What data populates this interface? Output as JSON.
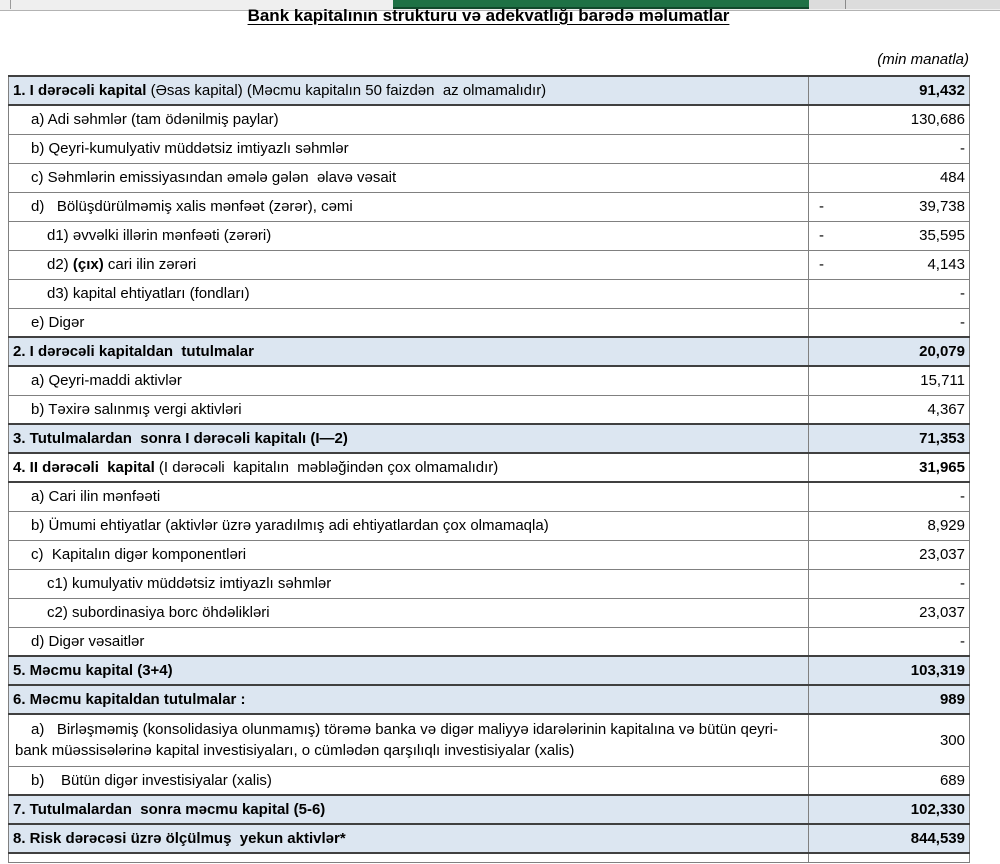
{
  "chrome": {
    "topbar_green": "#1e7145",
    "note": "cropped spreadsheet chrome strip"
  },
  "title": "Bank kapitalının strukturu və adekvatlığı barədə məlumatlar",
  "unit_note": "(min manatla)",
  "colors": {
    "section_bg": "#dce6f1",
    "grid_border": "#808080",
    "section_border": "#404040"
  },
  "table": {
    "rows": [
      {
        "kind": "section",
        "shaded": true,
        "indent": 0,
        "value": "91,432",
        "value_bold": true,
        "negative": false,
        "segments": [
          {
            "text": "1. I dərəcəli kapital ",
            "bold": true
          },
          {
            "text": "(Əsas kapital) (Məcmu kapitalın 50 faizdən  az olmamalıdır)",
            "bold": false
          }
        ]
      },
      {
        "kind": "item",
        "indent": 1,
        "value": "130,686",
        "segments": [
          {
            "text": "a) Adi səhmlər (tam ödənilmiş paylar)",
            "bold": false
          }
        ]
      },
      {
        "kind": "item",
        "indent": 1,
        "value": "-",
        "segments": [
          {
            "text": "b) Qeyri-kumulyativ müddətsiz imtiyazlı səhmlər",
            "bold": false
          }
        ]
      },
      {
        "kind": "item",
        "indent": 1,
        "value": "484",
        "segments": [
          {
            "text": "c) Səhmlərin emissiyasından əmələ gələn  əlavə vəsait",
            "bold": false
          }
        ]
      },
      {
        "kind": "item",
        "indent": 1,
        "value": "39,738",
        "negative": true,
        "segments": [
          {
            "text": "d)   Bölüşdürülməmiş xalis mənfəət (zərər), cəmi",
            "bold": false
          }
        ]
      },
      {
        "kind": "item",
        "indent": 2,
        "value": "35,595",
        "negative": true,
        "segments": [
          {
            "text": "d1) əvvəlki illərin mənfəəti (zərəri)",
            "bold": false
          }
        ]
      },
      {
        "kind": "item",
        "indent": 2,
        "value": "4,143",
        "negative": true,
        "segments": [
          {
            "text": "d2) ",
            "bold": false
          },
          {
            "text": "(çıx)",
            "bold": true
          },
          {
            "text": " cari ilin zərəri",
            "bold": false
          }
        ]
      },
      {
        "kind": "item",
        "indent": 2,
        "value": "-",
        "segments": [
          {
            "text": "d3) kapital ehtiyatları (fondları)",
            "bold": false
          }
        ]
      },
      {
        "kind": "item",
        "indent": 1,
        "value": "-",
        "segments": [
          {
            "text": "e) Digər",
            "bold": false
          }
        ]
      },
      {
        "kind": "section",
        "shaded": true,
        "indent": 0,
        "value": "20,079",
        "value_bold": true,
        "segments": [
          {
            "text": "2. I dərəcəli kapitaldan  tutulmalar",
            "bold": true
          }
        ]
      },
      {
        "kind": "item",
        "indent": 1,
        "value": "15,711",
        "segments": [
          {
            "text": "a) Qeyri-maddi aktivlər",
            "bold": false
          }
        ]
      },
      {
        "kind": "item",
        "indent": 1,
        "value": "4,367",
        "segments": [
          {
            "text": "b) Təxirə salınmış vergi aktivləri",
            "bold": false
          }
        ]
      },
      {
        "kind": "section",
        "shaded": true,
        "indent": 0,
        "value": "71,353",
        "value_bold": true,
        "segments": [
          {
            "text": "3. Tutulmalardan  sonra I dərəcəli kapitalı (I—2)",
            "bold": true
          }
        ]
      },
      {
        "kind": "section",
        "shaded": false,
        "indent": 0,
        "value": "31,965",
        "value_bold": true,
        "segments": [
          {
            "text": "4. II dərəcəli  kapital ",
            "bold": true
          },
          {
            "text": "(I dərəcəli  kapitalın  məbləğindən çox olmamalıdır)",
            "bold": false
          }
        ]
      },
      {
        "kind": "item",
        "indent": 1,
        "value": "-",
        "segments": [
          {
            "text": "a) Cari ilin mənfəəti",
            "bold": false
          }
        ]
      },
      {
        "kind": "item",
        "indent": 1,
        "value": "8,929",
        "segments": [
          {
            "text": "b) Ümumi ehtiyatlar (aktivlər üzrə yaradılmış adi ehtiyatlardan çox olmamaqla)",
            "bold": false
          }
        ]
      },
      {
        "kind": "item",
        "indent": 1,
        "value": "23,037",
        "segments": [
          {
            "text": "c)  Kapitalın digər komponentləri",
            "bold": false
          }
        ]
      },
      {
        "kind": "item",
        "indent": 2,
        "value": "-",
        "segments": [
          {
            "text": "c1) kumulyativ müddətsiz imtiyazlı səhmlər",
            "bold": false
          }
        ]
      },
      {
        "kind": "item",
        "indent": 2,
        "value": "23,037",
        "segments": [
          {
            "text": "c2) subordinasiya borc öhdəlikləri",
            "bold": false
          }
        ]
      },
      {
        "kind": "item",
        "indent": 1,
        "value": "-",
        "segments": [
          {
            "text": "d) Digər vəsaitlər",
            "bold": false
          }
        ]
      },
      {
        "kind": "section",
        "shaded": true,
        "indent": 0,
        "value": "103,319",
        "value_bold": true,
        "segments": [
          {
            "text": "5. Məcmu kapital (3+4)",
            "bold": true
          }
        ]
      },
      {
        "kind": "section",
        "shaded": true,
        "indent": 0,
        "value": "989",
        "value_bold": true,
        "segments": [
          {
            "text": "6. Məcmu kapitaldan tutulmalar :",
            "bold": true
          }
        ]
      },
      {
        "kind": "item",
        "indent": "hang",
        "tall": true,
        "value": "300",
        "segments": [
          {
            "text": "a)   Birləşməmiş (konsolidasiya olunmamış) törəmə banka və digər maliyyə idarələrinin kapitalına və bütün qeyri-bank müəssisələrinə kapital investisiyaları, o cümlədən qarşılıqlı investisiyalar (xalis)",
            "bold": false
          }
        ]
      },
      {
        "kind": "item",
        "indent": 1,
        "value": "689",
        "segments": [
          {
            "text": "b)    Bütün digər investisiyalar (xalis)",
            "bold": false
          }
        ]
      },
      {
        "kind": "section",
        "shaded": true,
        "indent": 0,
        "value": "102,330",
        "value_bold": true,
        "segments": [
          {
            "text": "7. Tutulmalardan  sonra məcmu kapital (5-6)",
            "bold": true
          }
        ]
      },
      {
        "kind": "section",
        "shaded": true,
        "indent": 0,
        "value": "844,539",
        "value_bold": true,
        "segments": [
          {
            "text": "8. Risk dərəcəsi üzrə ölçülmuş  yekun aktivlər*",
            "bold": true
          }
        ]
      }
    ]
  }
}
